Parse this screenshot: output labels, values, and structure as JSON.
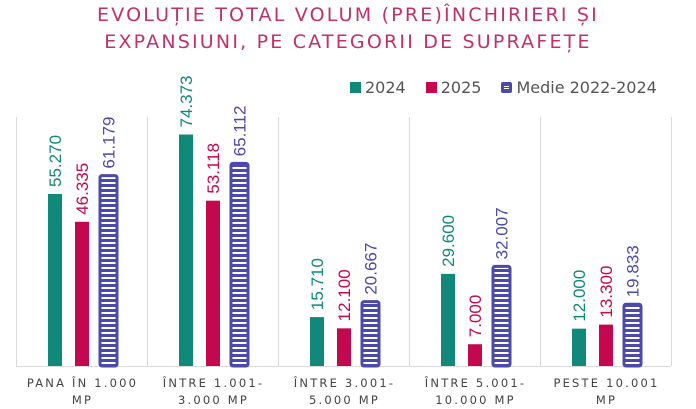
{
  "chart_data": {
    "type": "bar",
    "title": [
      "EVOLUȚIE TOTAL VOLUM (PRE)ÎNCHIRIERI ȘI",
      "EXPANSIUNI, PE CATEGORII DE SUPRAFEȚE"
    ],
    "xlabel": "",
    "ylabel": "",
    "ylim": [
      0,
      80
    ],
    "grid": false,
    "legend_position": "top-right",
    "categories": [
      [
        "PANA ÎN 1.000",
        "MP"
      ],
      [
        "ÎNTRE 1.001-",
        "3.000 MP"
      ],
      [
        "ÎNTRE 3.001-",
        "5.000 MP"
      ],
      [
        "ÎNTRE 5.001-",
        "10.000 MP"
      ],
      [
        "PESTE 10.001",
        "MP"
      ]
    ],
    "series": [
      {
        "name": "2024",
        "color": "#10897a",
        "pattern": "solid",
        "values": [
          55.27,
          74.373,
          15.71,
          29.6,
          12.0
        ],
        "labels": [
          "55.270",
          "74.373",
          "15.710",
          "29.600",
          "12.000"
        ]
      },
      {
        "name": "2025",
        "color": "#c4084f",
        "pattern": "solid",
        "values": [
          46.335,
          53.118,
          12.1,
          7.0,
          13.3
        ],
        "labels": [
          "46.335",
          "53.118",
          "12.100",
          "7.000",
          "13.300"
        ]
      },
      {
        "name": "Medie 2022-2024",
        "color": "#4b4aa8",
        "pattern": "horizontal-stripes",
        "values": [
          61.179,
          65.112,
          20.667,
          32.007,
          19.833
        ],
        "labels": [
          "61.179",
          "65.112",
          "20.667",
          "32.007",
          "19.833"
        ]
      }
    ]
  },
  "legend": {
    "items": [
      "2024",
      "2025",
      "Medie 2022-2024"
    ]
  }
}
